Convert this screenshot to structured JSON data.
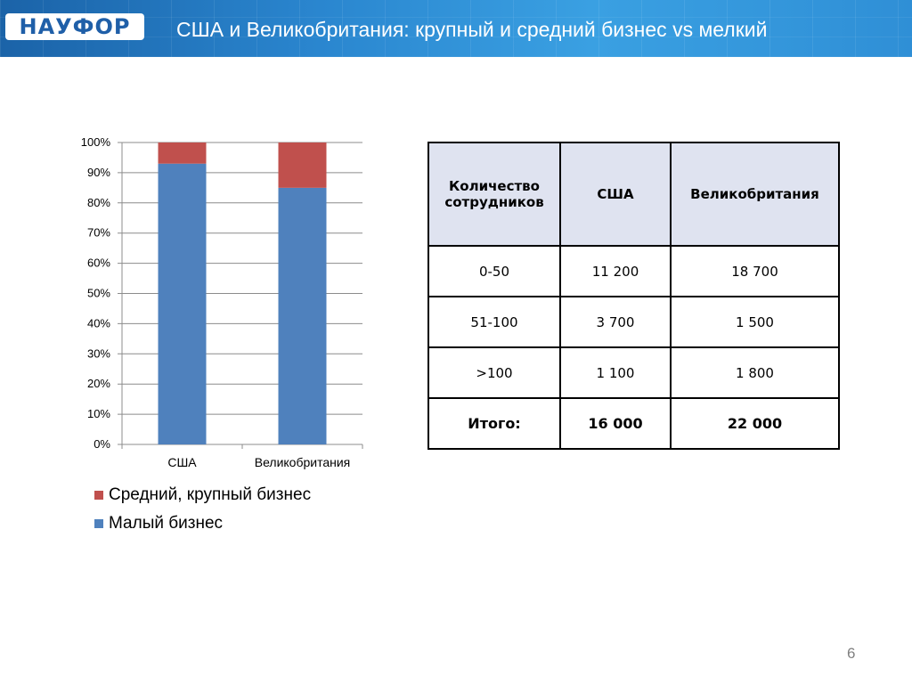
{
  "header": {
    "logo_text": "НАУФОР",
    "title": "США и Великобритания: крупный и средний бизнес vs мелкий"
  },
  "chart_data": {
    "type": "bar",
    "stacked": true,
    "categories": [
      "США",
      "Великобритания"
    ],
    "series": [
      {
        "name": "Малый бизнес",
        "values": [
          93,
          85
        ],
        "color": "#4f81bd"
      },
      {
        "name": "Средний, крупный бизнес",
        "values": [
          7,
          15
        ],
        "color": "#c0504d"
      }
    ],
    "ylim": [
      0,
      100
    ],
    "yticks": [
      "0%",
      "10%",
      "20%",
      "30%",
      "40%",
      "50%",
      "60%",
      "70%",
      "80%",
      "90%",
      "100%"
    ],
    "grid": true,
    "legend_position": "bottom"
  },
  "legend": [
    {
      "label": "Средний, крупный бизнес",
      "color": "#c0504d"
    },
    {
      "label": "Малый бизнес",
      "color": "#4f81bd"
    }
  ],
  "table": {
    "headers": [
      "Количество сотрудников",
      "США",
      "Великобритания"
    ],
    "rows": [
      [
        "0-50",
        "11 200",
        "18 700"
      ],
      [
        "51-100",
        "3 700",
        "1 500"
      ],
      [
        ">100",
        "1 100",
        "1 800"
      ],
      [
        "Итого:",
        "16 000",
        "22 000"
      ]
    ]
  },
  "page_number": "6"
}
